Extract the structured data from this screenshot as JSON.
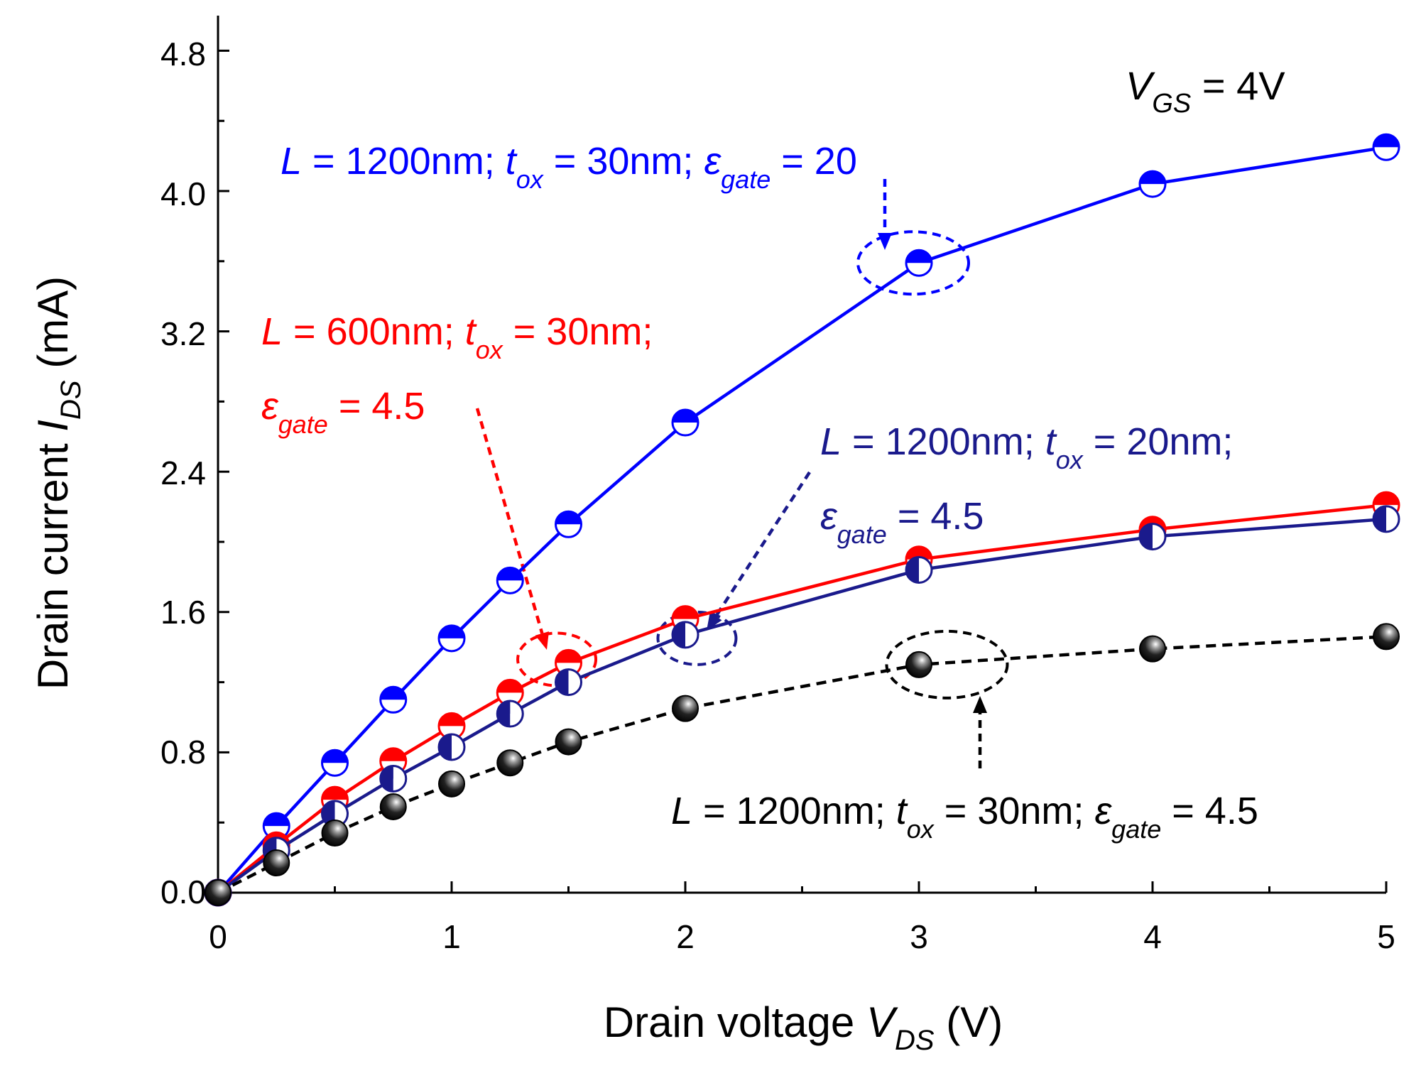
{
  "chart_data": {
    "type": "line",
    "title": "",
    "xlabel": {
      "prefix": "Drain voltage ",
      "sym": "V",
      "sub": "DS",
      "suffix": " (V)"
    },
    "ylabel": {
      "prefix": "Drain current ",
      "sym": "I",
      "sub": "DS",
      "suffix": " (mA)"
    },
    "xlim": [
      0,
      5
    ],
    "ylim": [
      0,
      5.0
    ],
    "xticks": [
      0,
      1,
      2,
      3,
      4,
      5
    ],
    "xtick_labels": [
      "0",
      "1",
      "2",
      "3",
      "4",
      "5"
    ],
    "yticks": [
      0.0,
      0.8,
      1.6,
      2.4,
      3.2,
      4.0,
      4.8
    ],
    "ytick_labels": [
      "0.0",
      "0.8",
      "1.6",
      "2.4",
      "3.2",
      "4.0",
      "4.8"
    ],
    "condition": {
      "sym": "V",
      "sub": "GS",
      "rest": " = 4V"
    },
    "series": [
      {
        "name": "L = 1200nm; tox = 30nm; εgate = 20",
        "color": "#0000ff",
        "marker": "half-open-circle",
        "line_style": "solid",
        "x": [
          0,
          0.25,
          0.5,
          0.75,
          1.0,
          1.25,
          1.5,
          2,
          3,
          4,
          5
        ],
        "y": [
          0.0,
          0.38,
          0.74,
          1.1,
          1.45,
          1.78,
          2.1,
          2.68,
          3.59,
          4.04,
          4.25
        ],
        "label_lines": [
          [
            {
              "t": "L",
              "i": true
            },
            {
              "t": " = 1200nm;  "
            },
            {
              "t": "t",
              "i": true
            },
            {
              "t": "ox",
              "sub": true,
              "i": true
            },
            {
              "t": " = 30nm; "
            },
            {
              "t": "ε",
              "i": true
            },
            {
              "t": "gate",
              "sub": true,
              "i": true
            },
            {
              "t": " = 20"
            }
          ]
        ]
      },
      {
        "name": "L = 600nm; tox = 30nm; εgate = 4.5",
        "color": "#ff0000",
        "marker": "half-open-circle",
        "line_style": "solid",
        "x": [
          0,
          0.25,
          0.5,
          0.75,
          1.0,
          1.25,
          1.5,
          2,
          3,
          4,
          5
        ],
        "y": [
          0.0,
          0.27,
          0.53,
          0.75,
          0.95,
          1.14,
          1.31,
          1.56,
          1.9,
          2.07,
          2.21
        ],
        "label_lines": [
          [
            {
              "t": "L",
              "i": true
            },
            {
              "t": " = 600nm; "
            },
            {
              "t": "t",
              "i": true
            },
            {
              "t": "ox",
              "sub": true,
              "i": true
            },
            {
              "t": " = 30nm;"
            }
          ],
          [
            {
              "t": "ε",
              "i": true
            },
            {
              "t": "gate",
              "sub": true,
              "i": true
            },
            {
              "t": " = 4.5"
            }
          ]
        ]
      },
      {
        "name": "L = 1200nm; tox = 20nm; εgate = 4.5",
        "color": "#1a1a8c",
        "marker": "half-filled-circle",
        "line_style": "solid",
        "x": [
          0,
          0.25,
          0.5,
          0.75,
          1.0,
          1.25,
          1.5,
          2,
          3,
          4,
          5
        ],
        "y": [
          0.0,
          0.24,
          0.45,
          0.65,
          0.83,
          1.02,
          1.2,
          1.47,
          1.84,
          2.03,
          2.13
        ],
        "label_lines": [
          [
            {
              "t": "L",
              "i": true
            },
            {
              "t": " = 1200nm; "
            },
            {
              "t": "t",
              "i": true
            },
            {
              "t": "ox",
              "sub": true,
              "i": true
            },
            {
              "t": " = 20nm;"
            }
          ],
          [
            {
              "t": "ε",
              "i": true
            },
            {
              "t": "gate",
              "sub": true,
              "i": true
            },
            {
              "t": " = 4.5"
            }
          ]
        ]
      },
      {
        "name": "L = 1200nm; tox = 30nm; εgate = 4.5",
        "color": "#000000",
        "marker": "sphere",
        "line_style": "dashed",
        "x": [
          0,
          0.25,
          0.5,
          0.75,
          1.0,
          1.25,
          1.5,
          2,
          3,
          4,
          5
        ],
        "y": [
          0.0,
          0.17,
          0.34,
          0.49,
          0.62,
          0.74,
          0.86,
          1.05,
          1.3,
          1.39,
          1.46
        ],
        "label_lines": [
          [
            {
              "t": "L",
              "i": true
            },
            {
              "t": " = 1200nm;  "
            },
            {
              "t": "t",
              "i": true
            },
            {
              "t": "ox",
              "sub": true,
              "i": true
            },
            {
              "t": " = 30nm; "
            },
            {
              "t": "ε",
              "i": true
            },
            {
              "t": "gate",
              "sub": true,
              "i": true
            },
            {
              "t": " = 4.5"
            }
          ]
        ]
      }
    ]
  }
}
